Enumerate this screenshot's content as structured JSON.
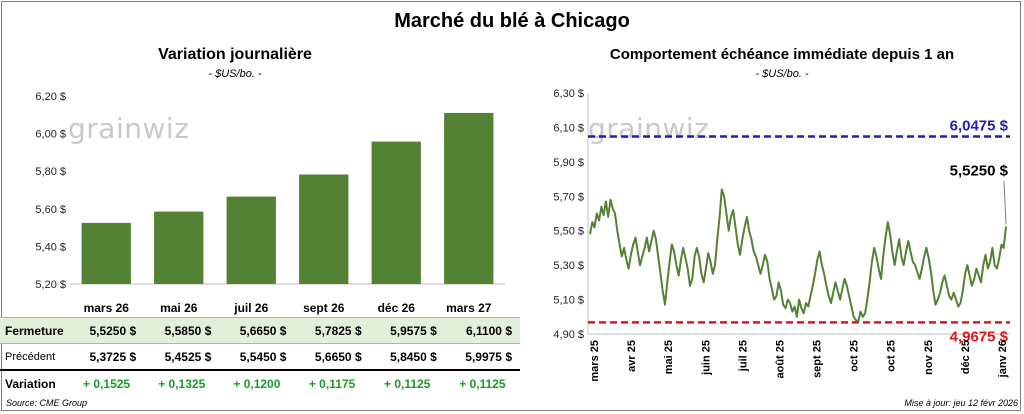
{
  "title": "Marché du blé à Chicago",
  "left_panel": {
    "subtitle": "Variation journalière",
    "unit": "- $US/bo. -",
    "watermark": "grainwiz"
  },
  "right_panel": {
    "subtitle": "Comportement  échéance immédiate depuis 1 an",
    "unit": "- $US/bo. -",
    "watermark": "grainwiz"
  },
  "table": {
    "row_labels": {
      "close": "Fermeture",
      "previous": "Précédent",
      "change": "Variation"
    },
    "close": [
      "5,5250  $",
      "5,5850  $",
      "5,6650  $",
      "5,7825  $",
      "5,9575  $",
      "6,1100  $"
    ],
    "previous": [
      "5,3725  $",
      "5,4525  $",
      "5,5450  $",
      "5,6650  $",
      "5,8450  $",
      "5,9975  $"
    ],
    "change": [
      "+ 0,1525",
      "+ 0,1325",
      "+ 0,1200",
      "+ 0,1175",
      "+ 0,1125",
      "+ 0,1125"
    ]
  },
  "footer": {
    "source": "Source: CME Group",
    "updated": "Mise à jour: jeu 12 févr 2026"
  },
  "colors": {
    "bar": "#548235",
    "line": "#548235",
    "high_line": "#1f1fb4",
    "low_line": "#e0161d"
  },
  "chart_data": [
    {
      "type": "bar",
      "title": "Variation journalière",
      "ylabel": "$US/bo.",
      "categories": [
        "mars 26",
        "mai 26",
        "juil 26",
        "sept 26",
        "déc 26",
        "mars 27"
      ],
      "values": [
        5.525,
        5.585,
        5.665,
        5.7825,
        5.9575,
        6.11
      ],
      "ylim": [
        5.2,
        6.2
      ],
      "yticks": [
        5.2,
        5.4,
        5.6,
        5.8,
        6.0,
        6.2
      ],
      "ytick_labels": [
        "5,20 $",
        "5,40 $",
        "5,60 $",
        "5,80 $",
        "6,00 $",
        "6,20 $"
      ],
      "grid": false
    },
    {
      "type": "line",
      "title": "Comportement  échéance immédiate depuis 1 an",
      "ylabel": "$US/bo.",
      "x_labels": [
        "mars 25",
        "avr 25",
        "mai 25",
        "juin 25",
        "juil 25",
        "août 25",
        "sept 25",
        "oct 25",
        "oct 25",
        "nov 25",
        "déc 25",
        "janv 26"
      ],
      "ylim": [
        4.9,
        6.3
      ],
      "yticks": [
        4.9,
        5.1,
        5.3,
        5.5,
        5.7,
        5.9,
        6.1,
        6.3
      ],
      "ytick_labels": [
        "4,90 $",
        "5,10 $",
        "5,30 $",
        "5,50 $",
        "5,70 $",
        "5,90 $",
        "6,10 $",
        "6,30 $"
      ],
      "high": 6.0475,
      "high_label": "6,0475 $",
      "low": 4.9675,
      "low_label": "4,9675 $",
      "last": 5.525,
      "last_label": "5,5250 $",
      "values": [
        5.48,
        5.55,
        5.52,
        5.6,
        5.56,
        5.64,
        5.59,
        5.67,
        5.58,
        5.68,
        5.63,
        5.6,
        5.5,
        5.42,
        5.35,
        5.4,
        5.33,
        5.28,
        5.36,
        5.42,
        5.46,
        5.38,
        5.3,
        5.35,
        5.4,
        5.46,
        5.38,
        5.44,
        5.5,
        5.45,
        5.35,
        5.25,
        5.15,
        5.07,
        5.2,
        5.32,
        5.42,
        5.38,
        5.3,
        5.24,
        5.33,
        5.4,
        5.34,
        5.28,
        5.18,
        5.22,
        5.35,
        5.4,
        5.35,
        5.25,
        5.2,
        5.28,
        5.37,
        5.32,
        5.25,
        5.3,
        5.45,
        5.58,
        5.74,
        5.7,
        5.6,
        5.5,
        5.58,
        5.62,
        5.52,
        5.42,
        5.36,
        5.45,
        5.52,
        5.58,
        5.5,
        5.45,
        5.38,
        5.35,
        5.3,
        5.25,
        5.3,
        5.36,
        5.32,
        5.22,
        5.16,
        5.1,
        5.12,
        5.2,
        5.15,
        5.07,
        5.05,
        5.1,
        5.08,
        5.03,
        5.06,
        5.0,
        5.1,
        5.05,
        5.02,
        5.08,
        5.06,
        5.12,
        5.18,
        5.25,
        5.33,
        5.38,
        5.3,
        5.25,
        5.18,
        5.12,
        5.08,
        5.14,
        5.2,
        5.15,
        5.1,
        5.16,
        5.22,
        5.18,
        5.12,
        5.06,
        5.0,
        4.98,
        4.97,
        5.03,
        5.0,
        5.02,
        5.1,
        5.2,
        5.32,
        5.4,
        5.35,
        5.28,
        5.22,
        5.35,
        5.46,
        5.55,
        5.48,
        5.38,
        5.3,
        5.38,
        5.45,
        5.35,
        5.3,
        5.38,
        5.44,
        5.38,
        5.32,
        5.3,
        5.26,
        5.22,
        5.28,
        5.35,
        5.4,
        5.34,
        5.26,
        5.15,
        5.07,
        5.1,
        5.14,
        5.2,
        5.24,
        5.18,
        5.12,
        5.1,
        5.14,
        5.1,
        5.06,
        5.08,
        5.15,
        5.25,
        5.3,
        5.24,
        5.18,
        5.22,
        5.28,
        5.24,
        5.2,
        5.3,
        5.36,
        5.28,
        5.32,
        5.4,
        5.3,
        5.28,
        5.34,
        5.42,
        5.4,
        5.525
      ]
    }
  ]
}
